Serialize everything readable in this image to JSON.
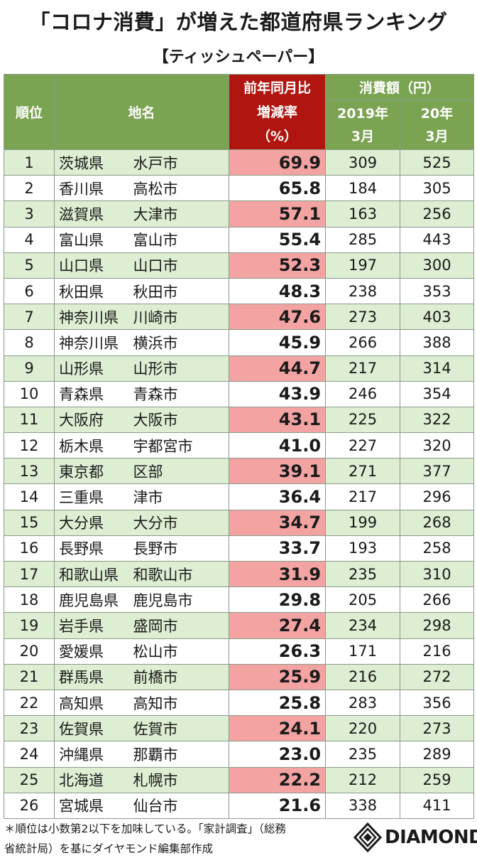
{
  "title": "「コロナ消費」が増えた都道府県ランキング",
  "subtitle": "【ティッシュペーパー】",
  "header": {
    "rank": "順位",
    "place": "地名",
    "pct_line1": "前年同月比",
    "pct_line2": "増減率",
    "pct_line3": "（%）",
    "spend": "消費額（円）",
    "y2019_line1": "2019年",
    "y2019_line2": "3月",
    "y2020_line1": "20年",
    "y2020_line2": "3月"
  },
  "chart_data": {
    "type": "table",
    "title": "「コロナ消費」が増えた都道府県ランキング",
    "subtitle": "【ティッシュペーパー】",
    "columns": [
      "順位",
      "地名",
      "地名",
      "前年同月比増減率（%）",
      "2019年3月",
      "20年3月"
    ],
    "rows": [
      {
        "rank": "1",
        "pref": "茨城県",
        "city": "水戸市",
        "pct": "69.9",
        "y2019": "309",
        "y2020": "525"
      },
      {
        "rank": "2",
        "pref": "香川県",
        "city": "高松市",
        "pct": "65.8",
        "y2019": "184",
        "y2020": "305"
      },
      {
        "rank": "3",
        "pref": "滋賀県",
        "city": "大津市",
        "pct": "57.1",
        "y2019": "163",
        "y2020": "256"
      },
      {
        "rank": "4",
        "pref": "富山県",
        "city": "富山市",
        "pct": "55.4",
        "y2019": "285",
        "y2020": "443"
      },
      {
        "rank": "5",
        "pref": "山口県",
        "city": "山口市",
        "pct": "52.3",
        "y2019": "197",
        "y2020": "300"
      },
      {
        "rank": "6",
        "pref": "秋田県",
        "city": "秋田市",
        "pct": "48.3",
        "y2019": "238",
        "y2020": "353"
      },
      {
        "rank": "7",
        "pref": "神奈川県",
        "city": "川崎市",
        "pct": "47.6",
        "y2019": "273",
        "y2020": "403"
      },
      {
        "rank": "8",
        "pref": "神奈川県",
        "city": "横浜市",
        "pct": "45.9",
        "y2019": "266",
        "y2020": "388"
      },
      {
        "rank": "9",
        "pref": "山形県",
        "city": "山形市",
        "pct": "44.7",
        "y2019": "217",
        "y2020": "314"
      },
      {
        "rank": "10",
        "pref": "青森県",
        "city": "青森市",
        "pct": "43.9",
        "y2019": "246",
        "y2020": "354"
      },
      {
        "rank": "11",
        "pref": "大阪府",
        "city": "大阪市",
        "pct": "43.1",
        "y2019": "225",
        "y2020": "322"
      },
      {
        "rank": "12",
        "pref": "栃木県",
        "city": "宇都宮市",
        "pct": "41.0",
        "y2019": "227",
        "y2020": "320"
      },
      {
        "rank": "13",
        "pref": "東京都",
        "city": "区部",
        "pct": "39.1",
        "y2019": "271",
        "y2020": "377"
      },
      {
        "rank": "14",
        "pref": "三重県",
        "city": "津市",
        "pct": "36.4",
        "y2019": "217",
        "y2020": "296"
      },
      {
        "rank": "15",
        "pref": "大分県",
        "city": "大分市",
        "pct": "34.7",
        "y2019": "199",
        "y2020": "268"
      },
      {
        "rank": "16",
        "pref": "長野県",
        "city": "長野市",
        "pct": "33.7",
        "y2019": "193",
        "y2020": "258"
      },
      {
        "rank": "17",
        "pref": "和歌山県",
        "city": "和歌山市",
        "pct": "31.9",
        "y2019": "235",
        "y2020": "310"
      },
      {
        "rank": "18",
        "pref": "鹿児島県",
        "city": "鹿児島市",
        "pct": "29.8",
        "y2019": "205",
        "y2020": "266"
      },
      {
        "rank": "19",
        "pref": "岩手県",
        "city": "盛岡市",
        "pct": "27.4",
        "y2019": "234",
        "y2020": "298"
      },
      {
        "rank": "20",
        "pref": "愛媛県",
        "city": "松山市",
        "pct": "26.3",
        "y2019": "171",
        "y2020": "216"
      },
      {
        "rank": "21",
        "pref": "群馬県",
        "city": "前橋市",
        "pct": "25.9",
        "y2019": "216",
        "y2020": "272"
      },
      {
        "rank": "22",
        "pref": "高知県",
        "city": "高知市",
        "pct": "25.8",
        "y2019": "283",
        "y2020": "356"
      },
      {
        "rank": "23",
        "pref": "佐賀県",
        "city": "佐賀市",
        "pct": "24.1",
        "y2019": "220",
        "y2020": "273"
      },
      {
        "rank": "24",
        "pref": "沖縄県",
        "city": "那覇市",
        "pct": "23.0",
        "y2019": "235",
        "y2020": "289"
      },
      {
        "rank": "25",
        "pref": "北海道",
        "city": "札幌市",
        "pct": "22.2",
        "y2019": "212",
        "y2020": "259"
      },
      {
        "rank": "26",
        "pref": "宮城県",
        "city": "仙台市",
        "pct": "21.6",
        "y2019": "338",
        "y2020": "411"
      }
    ]
  },
  "footnote_line1": "＊順位は小数第2以下を加味している。「家計調査」（総務",
  "footnote_line2": "省統計局）を基にダイヤモンド編集部作成",
  "logo_text": "DIAMOND",
  "colors": {
    "header_green": "#7aa352",
    "header_red": "#b0160f",
    "row_green": "#ddeed3",
    "pct_pink": "#f4a3a3"
  }
}
